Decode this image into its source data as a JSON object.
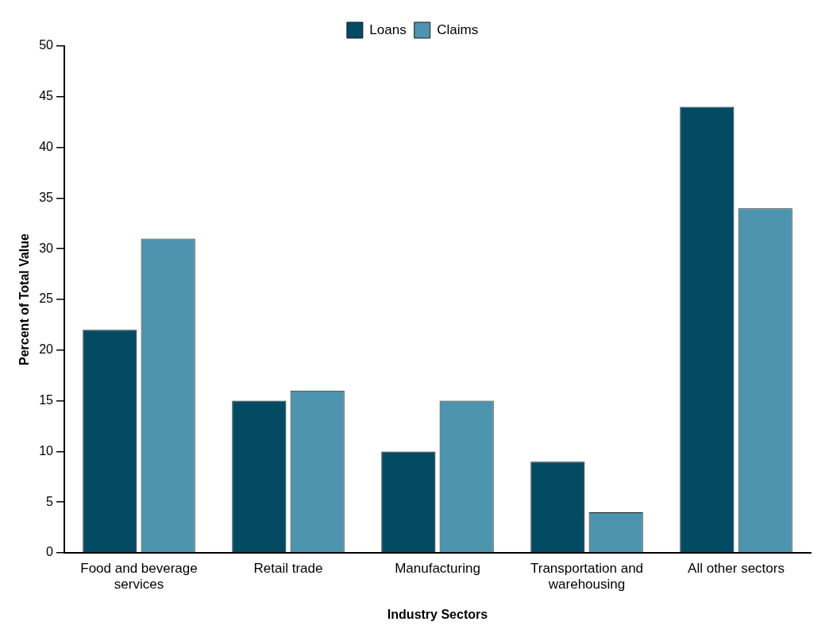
{
  "chart_data": {
    "type": "bar",
    "xlabel": "Industry Sectors",
    "ylabel": "Percent of Total Value",
    "categories": [
      "Food and beverage services",
      "Retail trade",
      "Manufacturing",
      "Transportation and warehousing",
      "All other sectors"
    ],
    "series": [
      {
        "name": "Loans",
        "color": "#034a63",
        "values": [
          22,
          15,
          10,
          9,
          44
        ]
      },
      {
        "name": "Claims",
        "color": "#4d94ae",
        "values": [
          31,
          16,
          15,
          4,
          34
        ]
      }
    ],
    "ylim": [
      0,
      50
    ],
    "yticks": [
      0,
      5,
      10,
      15,
      20,
      25,
      30,
      35,
      40,
      45,
      50
    ],
    "grid": false,
    "legend": "top"
  }
}
